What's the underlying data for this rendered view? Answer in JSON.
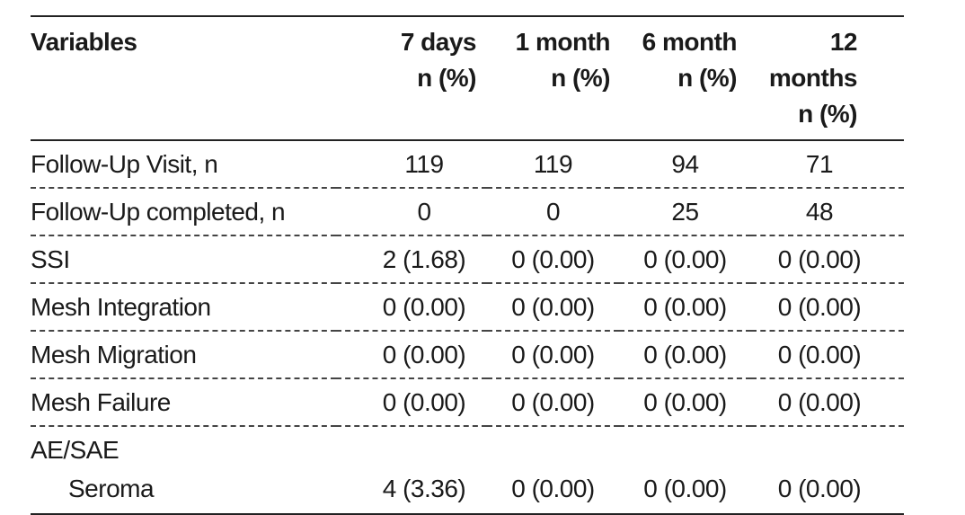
{
  "table": {
    "headers": {
      "variable": "Variables",
      "columns": [
        {
          "line1": "7 days",
          "line2": "n (%)"
        },
        {
          "line1": "1 month",
          "line2": "n (%)"
        },
        {
          "line1": "6 month",
          "line2": "n (%)"
        },
        {
          "line1": "12 months",
          "line2": "n (%)"
        }
      ]
    },
    "rows": [
      {
        "label": "Follow-Up Visit, n",
        "values": [
          "119",
          "119",
          "94",
          "71"
        ]
      },
      {
        "label": "Follow-Up completed, n",
        "values": [
          "0",
          "0",
          "25",
          "48"
        ]
      },
      {
        "label": "SSI",
        "values": [
          "2 (1.68)",
          "0 (0.00)",
          "0 (0.00)",
          "0 (0.00)"
        ]
      },
      {
        "label": "Mesh Integration",
        "values": [
          "0 (0.00)",
          "0 (0.00)",
          "0 (0.00)",
          "0 (0.00)"
        ]
      },
      {
        "label": "Mesh Migration",
        "values": [
          "0 (0.00)",
          "0 (0.00)",
          "0 (0.00)",
          "0 (0.00)"
        ]
      },
      {
        "label": "Mesh Failure",
        "values": [
          "0 (0.00)",
          "0 (0.00)",
          "0 (0.00)",
          "0 (0.00)"
        ]
      }
    ],
    "group": {
      "label": "AE/SAE",
      "subrows": [
        {
          "label": "Seroma",
          "values": [
            "4 (3.36)",
            "0 (0.00)",
            "0 (0.00)",
            "0 (0.00)"
          ]
        }
      ]
    }
  }
}
